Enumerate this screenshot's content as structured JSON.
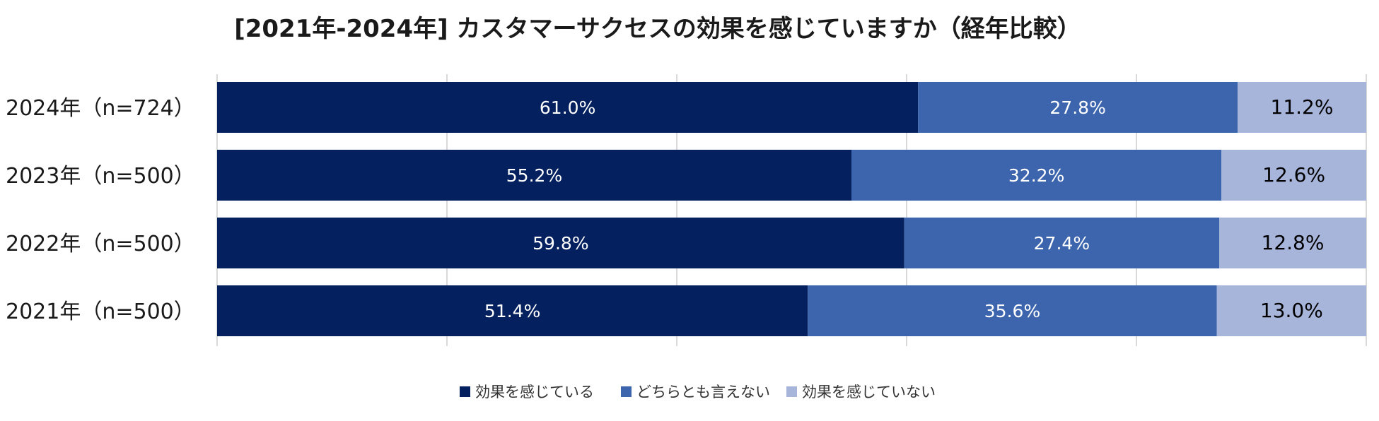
{
  "chart_data": {
    "type": "bar",
    "orientation": "horizontal",
    "stacked": true,
    "percent_stacked": true,
    "title": "[2021年-2024年] カスタマーサクセスの効果を感じていますか（経年比較）",
    "xlabel": "",
    "ylabel": "",
    "xlim": [
      0,
      100
    ],
    "grid": true,
    "legend_position": "bottom",
    "categories": [
      "2024年（n=724）",
      "2023年（n=500）",
      "2022年（n=500）",
      "2021年（n=500）"
    ],
    "series": [
      {
        "name": "効果を感じている",
        "color": "#04205e",
        "values": [
          61.0,
          55.2,
          59.8,
          51.4
        ],
        "labels": [
          "61.0%",
          "55.2%",
          "59.8%",
          "51.4%"
        ]
      },
      {
        "name": "どちらとも言えない",
        "color": "#3d65ad",
        "values": [
          27.8,
          32.2,
          27.4,
          35.6
        ],
        "labels": [
          "27.8%",
          "32.2%",
          "27.4%",
          "35.6%"
        ]
      },
      {
        "name": "効果を感じていない",
        "color": "#a7b5db",
        "values": [
          11.2,
          12.6,
          12.8,
          13.0
        ],
        "labels": [
          "11.2%",
          "12.6%",
          "12.8%",
          "13.0%"
        ]
      }
    ]
  },
  "colors": {
    "gridline": "#d9d9d9",
    "label_light": "#ffffff",
    "label_dark": "#000000"
  }
}
